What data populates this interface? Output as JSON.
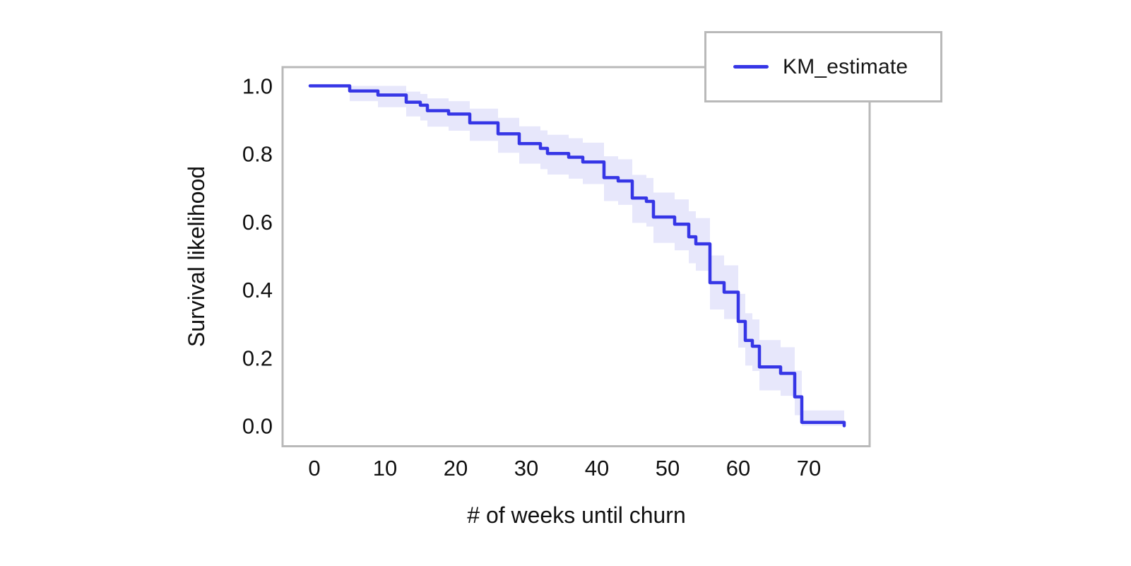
{
  "chart_data": {
    "type": "line",
    "subtype": "kaplan-meier-step-curve",
    "title": "",
    "xlabel": "# of weeks until churn",
    "ylabel": "Survival likelihood",
    "legend_position": "upper right",
    "xlim": [
      -4.5,
      78.6
    ],
    "ylim": [
      -0.06,
      1.055
    ],
    "xticks": [
      0,
      10,
      20,
      30,
      40,
      50,
      60,
      70
    ],
    "xtick_labels": [
      "0",
      "10",
      "20",
      "30",
      "40",
      "50",
      "60",
      "70"
    ],
    "yticks": [
      1.0,
      0.8,
      0.6,
      0.4,
      0.2,
      0.0
    ],
    "ytick_labels": [
      "1.0",
      "0.8",
      "0.6",
      "0.4",
      "0.2",
      "0.0"
    ],
    "grid": false,
    "series": [
      {
        "name": "KM_estimate",
        "drawstyle": "steps-post",
        "color": "#3636e6",
        "ci_fill_color": "#e7e7fb",
        "t_weeks": [
          0,
          5,
          9,
          13,
          15,
          16,
          19,
          22,
          26,
          29,
          32,
          33,
          36,
          38,
          41,
          43,
          45,
          47,
          48,
          51,
          53,
          54,
          56,
          58,
          60,
          61,
          62,
          63,
          66,
          68,
          69,
          75
        ],
        "survival": [
          1.0,
          0.985,
          0.973,
          0.952,
          0.943,
          0.927,
          0.917,
          0.891,
          0.859,
          0.83,
          0.816,
          0.801,
          0.79,
          0.776,
          0.73,
          0.72,
          0.67,
          0.66,
          0.614,
          0.593,
          0.556,
          0.535,
          0.421,
          0.393,
          0.307,
          0.251,
          0.234,
          0.173,
          0.154,
          0.085,
          0.01,
          0.0
        ],
        "ci_lower": [
          1.0,
          0.955,
          0.937,
          0.91,
          0.898,
          0.88,
          0.868,
          0.838,
          0.803,
          0.771,
          0.755,
          0.739,
          0.727,
          0.711,
          0.661,
          0.65,
          0.597,
          0.586,
          0.538,
          0.516,
          0.478,
          0.456,
          0.342,
          0.314,
          0.23,
          0.177,
          0.161,
          0.104,
          0.088,
          0.031,
          0.0,
          0.0
        ],
        "ci_upper": [
          1.0,
          1.0,
          1.0,
          0.983,
          0.976,
          0.963,
          0.955,
          0.933,
          0.906,
          0.881,
          0.869,
          0.856,
          0.846,
          0.833,
          0.793,
          0.784,
          0.738,
          0.729,
          0.686,
          0.666,
          0.631,
          0.611,
          0.501,
          0.472,
          0.388,
          0.331,
          0.313,
          0.252,
          0.231,
          0.162,
          0.045,
          0.0
        ]
      }
    ]
  },
  "colors": {
    "line": "#3636e6",
    "ci_band": "#e7e7fb",
    "axes_border": "#b9b9b9",
    "legend_border": "#b9b9b9",
    "text": "#111111",
    "background": "#ffffff"
  }
}
